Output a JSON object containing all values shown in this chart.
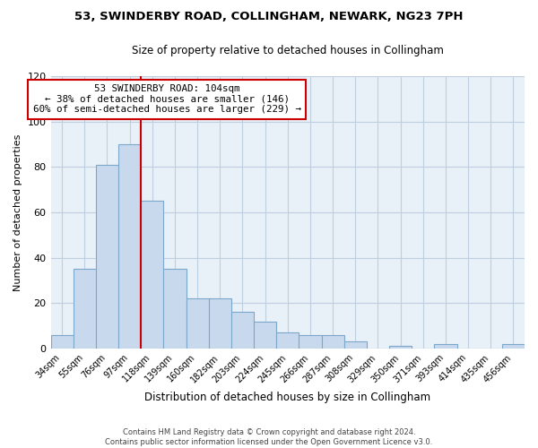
{
  "title": "53, SWINDERBY ROAD, COLLINGHAM, NEWARK, NG23 7PH",
  "subtitle": "Size of property relative to detached houses in Collingham",
  "xlabel": "Distribution of detached houses by size in Collingham",
  "ylabel": "Number of detached properties",
  "bar_labels": [
    "34sqm",
    "55sqm",
    "76sqm",
    "97sqm",
    "118sqm",
    "139sqm",
    "160sqm",
    "182sqm",
    "203sqm",
    "224sqm",
    "245sqm",
    "266sqm",
    "287sqm",
    "308sqm",
    "329sqm",
    "350sqm",
    "371sqm",
    "393sqm",
    "414sqm",
    "435sqm",
    "456sqm"
  ],
  "bar_values": [
    6,
    35,
    81,
    90,
    65,
    35,
    22,
    22,
    16,
    12,
    7,
    6,
    6,
    3,
    0,
    1,
    0,
    2,
    0,
    0,
    2
  ],
  "bar_color": "#c8d9ed",
  "bar_edge_color": "#7ba7cb",
  "ylim": [
    0,
    120
  ],
  "yticks": [
    0,
    20,
    40,
    60,
    80,
    100,
    120
  ],
  "vline_x": 3.5,
  "vline_color": "#cc0000",
  "annotation_line1": "53 SWINDERBY ROAD: 104sqm",
  "annotation_line2": "← 38% of detached houses are smaller (146)",
  "annotation_line3": "60% of semi-detached houses are larger (229) →",
  "annotation_box_color": "#ffffff",
  "annotation_box_edge": "#cc0000",
  "footer": "Contains HM Land Registry data © Crown copyright and database right 2024.\nContains public sector information licensed under the Open Government Licence v3.0.",
  "background_color": "#ffffff",
  "plot_bg_color": "#e8f0f8",
  "grid_color": "#c0cfe0"
}
